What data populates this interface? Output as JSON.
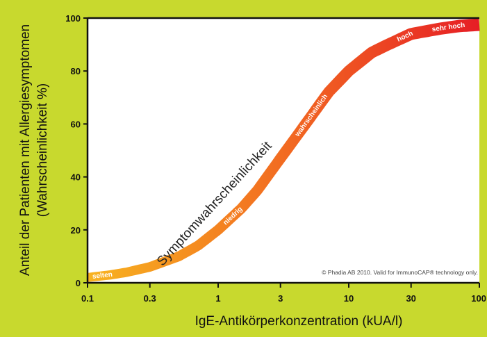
{
  "chart_data": {
    "type": "line",
    "title": "",
    "xlabel": "IgE-Antikörperkonzentration (kUA/l)",
    "ylabel_line1": "Anteil der Patienten mit Allergiesymptomen",
    "ylabel_line2": "(Wahrscheinlichkeit %)",
    "x_scale": "log",
    "xlim": [
      0.1,
      100
    ],
    "ylim": [
      0,
      100
    ],
    "x_ticks": [
      {
        "value": 0.1,
        "label": "0.1"
      },
      {
        "value": 0.3,
        "label": "0.3"
      },
      {
        "value": 1,
        "label": "1"
      },
      {
        "value": 3,
        "label": "3"
      },
      {
        "value": 10,
        "label": "10"
      },
      {
        "value": 30,
        "label": "30"
      },
      {
        "value": 100,
        "label": "100"
      }
    ],
    "y_ticks": [
      {
        "value": 0,
        "label": "0"
      },
      {
        "value": 20,
        "label": "20"
      },
      {
        "value": 40,
        "label": "40"
      },
      {
        "value": 60,
        "label": "60"
      },
      {
        "value": 80,
        "label": "80"
      },
      {
        "value": 100,
        "label": "100"
      }
    ],
    "grid": false,
    "series": [
      {
        "name": "Symptomwahrscheinlichkeit",
        "x": [
          0.1,
          0.15,
          0.2,
          0.3,
          0.5,
          0.7,
          1,
          1.5,
          2,
          3,
          5,
          7,
          10,
          15,
          20,
          30,
          50,
          70,
          100
        ],
        "y": [
          2,
          3,
          4,
          6,
          10,
          14,
          20,
          28,
          35,
          47,
          62,
          72,
          80,
          87,
          90,
          94,
          96,
          97,
          97.5
        ]
      }
    ],
    "band_labels": [
      {
        "text": "selten",
        "x": 0.13
      },
      {
        "text": "niedrig",
        "x": 1.3
      },
      {
        "text": "wahrscheinlich",
        "x": 5.2
      },
      {
        "text": "hoch",
        "x": 27
      },
      {
        "text": "sehr hoch",
        "x": 58
      }
    ],
    "curve_title": "Symptomwahrscheinlichkeit",
    "copyright": "© Phadia AB 2010. Valid for ImmunoCAP® technology only.",
    "colors": {
      "border": "#c8d92e",
      "plot_bg": "#ffffff",
      "axis": "#111111",
      "band_low": "#f8b420",
      "band_mid": "#f26b21",
      "band_high": "#e61e25"
    }
  }
}
